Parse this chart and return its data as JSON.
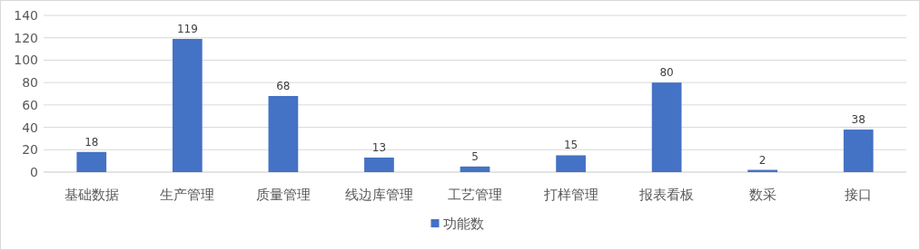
{
  "chart_data": {
    "type": "bar",
    "categories": [
      "基础数据",
      "生产管理",
      "质量管理",
      "线边库管理",
      "工艺管理",
      "打样管理",
      "报表看板",
      "数采",
      "接口"
    ],
    "series": [
      {
        "name": "功能数",
        "color": "#4472c4",
        "values": [
          18,
          119,
          68,
          13,
          5,
          15,
          80,
          2,
          38
        ]
      }
    ],
    "ylim": [
      0,
      140
    ],
    "yticks": [
      0,
      20,
      40,
      60,
      80,
      100,
      120,
      140
    ],
    "grid": "y",
    "legend": "bottom",
    "data_labels": true
  }
}
